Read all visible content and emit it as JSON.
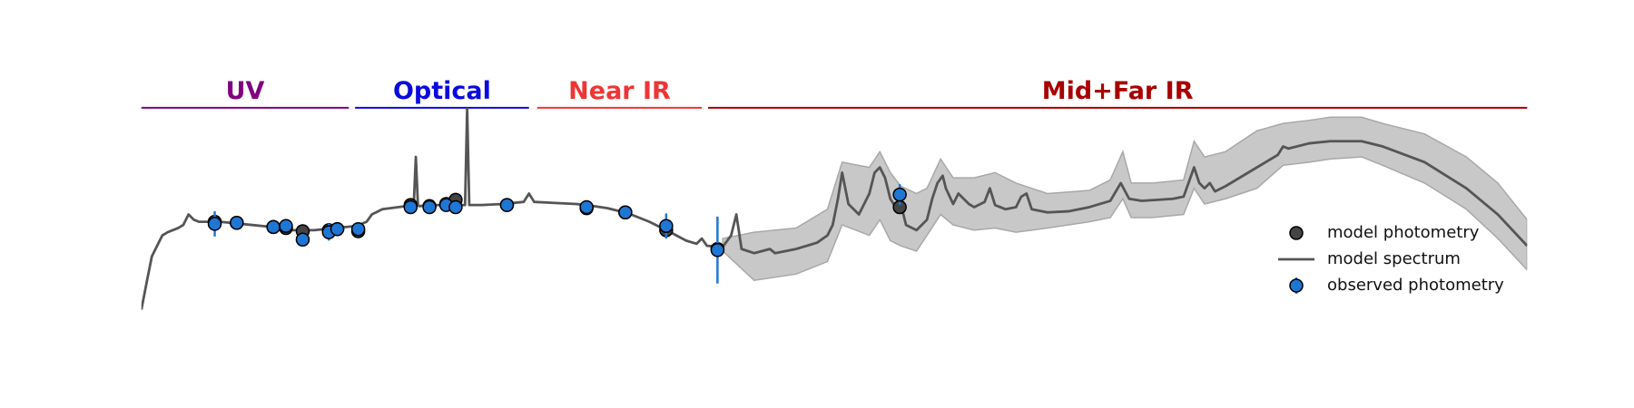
{
  "chart_data": {
    "type": "line",
    "xlim": [
      0,
      1323
    ],
    "ylim": [
      0,
      200
    ],
    "regions": [
      {
        "name": "UV",
        "color": "#800080",
        "x": [
          0,
          198
        ]
      },
      {
        "name": "Optical",
        "color": "#0a0adc",
        "x": [
          204,
          370
        ]
      },
      {
        "name": "Near IR",
        "color": "#ee3535",
        "x": [
          378,
          535
        ]
      },
      {
        "name": "Mid+Far IR",
        "color": "#a80000",
        "x": [
          541,
          1323
        ]
      }
    ],
    "band": {
      "color": "#c8c8c8",
      "x": [
        555,
        585,
        625,
        655,
        669,
        695,
        705,
        715,
        725,
        740,
        750,
        763,
        775,
        795,
        815,
        835,
        850,
        865,
        905,
        925,
        937,
        945,
        965,
        995,
        1005,
        1015,
        1035,
        1065,
        1090,
        1115,
        1135,
        1165,
        1185,
        1225,
        1265,
        1295,
        1323
      ],
      "lower": [
        56,
        28,
        34,
        46,
        81,
        71,
        86,
        66,
        61,
        56,
        71,
        91,
        81,
        76,
        78,
        74,
        76,
        78,
        84,
        88,
        106,
        88,
        88,
        91,
        116,
        101,
        106,
        116,
        138,
        141,
        144,
        146,
        138,
        121,
        96,
        68,
        38
      ],
      "upper": [
        68,
        74,
        78,
        96,
        141,
        136,
        151,
        131,
        118,
        111,
        116,
        144,
        126,
        126,
        131,
        121,
        116,
        111,
        114,
        124,
        151,
        121,
        121,
        124,
        161,
        146,
        151,
        171,
        178,
        181,
        184,
        184,
        178,
        168,
        146,
        121,
        86
      ]
    },
    "series": [
      {
        "name": "model photometry",
        "color": "#444444",
        "x": [
          70,
          91,
          126,
          138,
          154,
          179,
          187,
          207,
          257,
          275,
          291,
          300,
          349,
          425,
          462,
          501,
          550,
          724
        ],
        "values": [
          84,
          83,
          79,
          78,
          75,
          76,
          77,
          75,
          100,
          99,
          101,
          105,
          100,
          97,
          93,
          76,
          58,
          98
        ]
      },
      {
        "name": "model spectrum",
        "color": "#555555",
        "x": [
          0,
          5,
          10,
          15,
          20,
          25,
          30,
          35,
          40,
          45,
          50,
          55,
          65,
          75,
          85,
          105,
          125,
          145,
          165,
          185,
          205,
          215,
          220,
          230,
          245,
          260,
          262,
          264,
          265,
          285,
          305,
          309,
          311,
          313,
          325,
          345,
          365,
          370,
          375,
          395,
          415,
          425,
          445,
          465,
          485,
          505,
          520,
          530,
          535,
          540,
          555,
          563,
          568,
          573,
          585,
          600,
          605,
          625,
          645,
          655,
          660,
          665,
          669,
          675,
          685,
          695,
          700,
          705,
          710,
          715,
          720,
          725,
          730,
          740,
          750,
          755,
          760,
          765,
          768,
          775,
          780,
          785,
          790,
          795,
          805,
          810,
          815,
          825,
          835,
          840,
          845,
          850,
          865,
          885,
          905,
          925,
          935,
          943,
          955,
          985,
          995,
          1005,
          1010,
          1015,
          1020,
          1025,
          1035,
          1065,
          1085,
          1090,
          1095,
          1115,
          1135,
          1165,
          1185,
          1225,
          1265,
          1295,
          1323
        ],
        "values": [
          0,
          26,
          51,
          61,
          71,
          74,
          76,
          78,
          81,
          91,
          86,
          84,
          84,
          84,
          83,
          81,
          79,
          76,
          76,
          78,
          80,
          84,
          91,
          96,
          98,
          100,
          146,
          100,
          99,
          100,
          100,
          100,
          192,
          100,
          100,
          101,
          103,
          111,
          103,
          102,
          101,
          100,
          97,
          92,
          84,
          74,
          66,
          63,
          68,
          61,
          60,
          71,
          91,
          58,
          54,
          58,
          54,
          58,
          64,
          71,
          81,
          106,
          131,
          101,
          91,
          111,
          131,
          136,
          126,
          106,
          98,
          101,
          81,
          76,
          86,
          106,
          121,
          128,
          116,
          101,
          111,
          106,
          101,
          98,
          103,
          116,
          100,
          96,
          98,
          108,
          111,
          96,
          93,
          94,
          98,
          104,
          121,
          106,
          104,
          106,
          108,
          136,
          121,
          116,
          121,
          113,
          118,
          136,
          148,
          156,
          154,
          159,
          161,
          161,
          156,
          141,
          116,
          91,
          61
        ]
      },
      {
        "name": "observed photometry",
        "color": "#1f77d4",
        "x": [
          70,
          91,
          126,
          138,
          154,
          179,
          187,
          207,
          257,
          275,
          291,
          300,
          349,
          425,
          462,
          501,
          550,
          724
        ],
        "values": [
          82,
          83,
          79,
          80,
          67,
          74,
          77,
          77,
          98,
          98,
          100,
          98,
          100,
          98,
          93,
          80,
          57,
          110
        ],
        "errors": [
          12,
          3,
          3,
          3,
          3,
          8,
          3,
          6,
          3,
          3,
          3,
          3,
          3,
          3,
          3,
          12,
          32,
          10
        ]
      }
    ]
  }
}
